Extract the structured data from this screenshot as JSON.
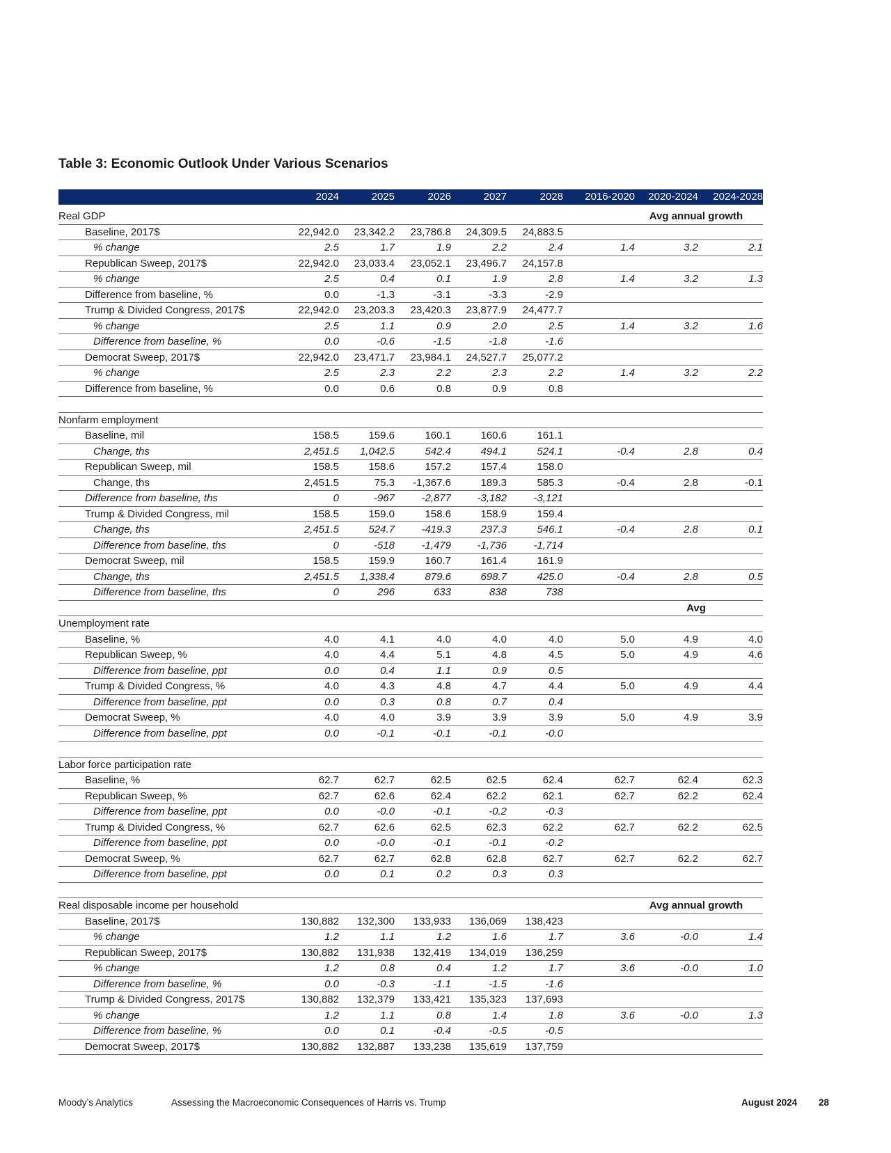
{
  "header": {
    "title": "Table 3: Economic Outlook Under Various Scenarios"
  },
  "table": {
    "columns": [
      "2024",
      "2025",
      "2026",
      "2027",
      "2028",
      "2016-2020",
      "2020-2024",
      "2024-2028"
    ],
    "sections": [
      {
        "label": "Real GDP",
        "note": "Avg annual growth",
        "note_row": "same",
        "rows": [
          {
            "label": "Baseline, 2017$",
            "indent": 1,
            "italic": false,
            "cells": [
              "22,942.0",
              "23,342.2",
              "23,786.8",
              "24,309.5",
              "24,883.5"
            ]
          },
          {
            "label": "% change",
            "indent": 2,
            "italic": true,
            "cells": [
              "2.5",
              "1.7",
              "1.9",
              "2.2",
              "2.4",
              "1.4",
              "3.2",
              "2.1"
            ]
          },
          {
            "label": "Republican Sweep, 2017$",
            "indent": 1,
            "italic": false,
            "cells": [
              "22,942.0",
              "23,033.4",
              "23,052.1",
              "23,496.7",
              "24,157.8"
            ]
          },
          {
            "label": "% change",
            "indent": 2,
            "italic": true,
            "cells": [
              "2.5",
              "0.4",
              "0.1",
              "1.9",
              "2.8",
              "1.4",
              "3.2",
              "1.3"
            ]
          },
          {
            "label": "Difference from baseline, %",
            "indent": 1,
            "italic": false,
            "cells": [
              "0.0",
              "-1.3",
              "-3.1",
              "-3.3",
              "-2.9"
            ]
          },
          {
            "label": "Trump & Divided Congress, 2017$",
            "indent": 1,
            "italic": false,
            "cells": [
              "22,942.0",
              "23,203.3",
              "23,420.3",
              "23,877.9",
              "24,477.7"
            ]
          },
          {
            "label": "% change",
            "indent": 2,
            "italic": true,
            "cells": [
              "2.5",
              "1.1",
              "0.9",
              "2.0",
              "2.5",
              "1.4",
              "3.2",
              "1.6"
            ]
          },
          {
            "label": "Difference from baseline, %",
            "indent": 2,
            "italic": true,
            "cells": [
              "0.0",
              "-0.6",
              "-1.5",
              "-1.8",
              "-1.6"
            ]
          },
          {
            "label": "Democrat Sweep, 2017$",
            "indent": 1,
            "italic": false,
            "cells": [
              "22,942.0",
              "23,471.7",
              "23,984.1",
              "24,527.7",
              "25,077.2"
            ]
          },
          {
            "label": "% change",
            "indent": 2,
            "italic": true,
            "cells": [
              "2.5",
              "2.3",
              "2.2",
              "2.3",
              "2.2",
              "1.4",
              "3.2",
              "2.2"
            ]
          },
          {
            "label": "Difference from baseline, %",
            "indent": 1,
            "italic": false,
            "cells": [
              "0.0",
              "0.6",
              "0.8",
              "0.9",
              "0.8"
            ]
          }
        ]
      },
      {
        "label": "Nonfarm employment",
        "rows": [
          {
            "label": "Baseline, mil",
            "indent": 1,
            "italic": false,
            "cells": [
              "158.5",
              "159.6",
              "160.1",
              "160.6",
              "161.1"
            ]
          },
          {
            "label": "Change, ths",
            "indent": 2,
            "italic": true,
            "cells": [
              "2,451.5",
              "1,042.5",
              "542.4",
              "494.1",
              "524.1",
              "-0.4",
              "2.8",
              "0.4"
            ]
          },
          {
            "label": "Republican Sweep, mil",
            "indent": 1,
            "italic": false,
            "cells": [
              "158.5",
              "158.6",
              "157.2",
              "157.4",
              "158.0"
            ]
          },
          {
            "label": "Change, ths",
            "indent": 2,
            "italic": false,
            "cells": [
              "2,451.5",
              "75.3",
              "-1,367.6",
              "189.3",
              "585.3",
              "-0.4",
              "2.8",
              "-0.1"
            ]
          },
          {
            "label": "Difference from baseline, ths",
            "indent": 1,
            "italic": true,
            "cells": [
              "0",
              "-967",
              "-2,877",
              "-3,182",
              "-3,121"
            ]
          },
          {
            "label": "Trump & Divided Congress, mil",
            "indent": 1,
            "italic": false,
            "cells": [
              "158.5",
              "159.0",
              "158.6",
              "158.9",
              "159.4"
            ]
          },
          {
            "label": "Change, ths",
            "indent": 2,
            "italic": true,
            "cells": [
              "2,451.5",
              "524.7",
              "-419.3",
              "237.3",
              "546.1",
              "-0.4",
              "2.8",
              "0.1"
            ]
          },
          {
            "label": "Difference from baseline, ths",
            "indent": 2,
            "italic": true,
            "cells": [
              "0",
              "-518",
              "-1,479",
              "-1,736",
              "-1,714"
            ]
          },
          {
            "label": "Democrat Sweep, mil",
            "indent": 1,
            "italic": false,
            "cells": [
              "158.5",
              "159.9",
              "160.7",
              "161.4",
              "161.9"
            ]
          },
          {
            "label": "Change, ths",
            "indent": 2,
            "italic": true,
            "cells": [
              "2,451.5",
              "1,338.4",
              "879.6",
              "698.7",
              "425.0",
              "-0.4",
              "2.8",
              "0.5"
            ]
          },
          {
            "label": "Difference from baseline, ths",
            "indent": 2,
            "italic": true,
            "cells": [
              "0",
              "296",
              "633",
              "838",
              "738"
            ]
          }
        ]
      },
      {
        "label": "Unemployment rate",
        "note": "Avg",
        "note_row": "above",
        "rows": [
          {
            "label": "Baseline, %",
            "indent": 1,
            "italic": false,
            "cells": [
              "4.0",
              "4.1",
              "4.0",
              "4.0",
              "4.0",
              "5.0",
              "4.9",
              "4.0"
            ]
          },
          {
            "label": "Republican Sweep, %",
            "indent": 1,
            "italic": false,
            "cells": [
              "4.0",
              "4.4",
              "5.1",
              "4.8",
              "4.5",
              "5.0",
              "4.9",
              "4.6"
            ]
          },
          {
            "label": "Difference from baseline, ppt",
            "indent": 2,
            "italic": true,
            "cells": [
              "0.0",
              "0.4",
              "1.1",
              "0.9",
              "0.5"
            ]
          },
          {
            "label": "Trump & Divided Congress, %",
            "indent": 1,
            "italic": false,
            "cells": [
              "4.0",
              "4.3",
              "4.8",
              "4.7",
              "4.4",
              "5.0",
              "4.9",
              "4.4"
            ]
          },
          {
            "label": "Difference from baseline, ppt",
            "indent": 2,
            "italic": true,
            "cells": [
              "0.0",
              "0.3",
              "0.8",
              "0.7",
              "0.4"
            ]
          },
          {
            "label": "Democrat Sweep, %",
            "indent": 1,
            "italic": false,
            "cells": [
              "4.0",
              "4.0",
              "3.9",
              "3.9",
              "3.9",
              "5.0",
              "4.9",
              "3.9"
            ]
          },
          {
            "label": "Difference from baseline, ppt",
            "indent": 2,
            "italic": true,
            "cells": [
              "0.0",
              "-0.1",
              "-0.1",
              "-0.1",
              "-0.0"
            ]
          }
        ]
      },
      {
        "label": "Labor force participation rate",
        "rows": [
          {
            "label": "Baseline, %",
            "indent": 1,
            "italic": false,
            "cells": [
              "62.7",
              "62.7",
              "62.5",
              "62.5",
              "62.4",
              "62.7",
              "62.4",
              "62.3"
            ]
          },
          {
            "label": "Republican Sweep, %",
            "indent": 1,
            "italic": false,
            "cells": [
              "62.7",
              "62.6",
              "62.4",
              "62.2",
              "62.1",
              "62.7",
              "62.2",
              "62.4"
            ]
          },
          {
            "label": "Difference from baseline, ppt",
            "indent": 2,
            "italic": true,
            "cells": [
              "0.0",
              "-0.0",
              "-0.1",
              "-0.2",
              "-0.3"
            ]
          },
          {
            "label": "Trump & Divided Congress, %",
            "indent": 1,
            "italic": false,
            "cells": [
              "62.7",
              "62.6",
              "62.5",
              "62.3",
              "62.2",
              "62.7",
              "62.2",
              "62.5"
            ]
          },
          {
            "label": "Difference from baseline, ppt",
            "indent": 2,
            "italic": true,
            "cells": [
              "0.0",
              "-0.0",
              "-0.1",
              "-0.1",
              "-0.2"
            ]
          },
          {
            "label": "Democrat Sweep, %",
            "indent": 1,
            "italic": false,
            "cells": [
              "62.7",
              "62.7",
              "62.8",
              "62.8",
              "62.7",
              "62.7",
              "62.2",
              "62.7"
            ]
          },
          {
            "label": "Difference from baseline, ppt",
            "indent": 2,
            "italic": true,
            "cells": [
              "0.0",
              "0.1",
              "0.2",
              "0.3",
              "0.3"
            ]
          }
        ]
      },
      {
        "label": "Real disposable income per household",
        "note": "Avg annual growth",
        "note_row": "same",
        "rows": [
          {
            "label": "Baseline, 2017$",
            "indent": 1,
            "italic": false,
            "cells": [
              "130,882",
              "132,300",
              "133,933",
              "136,069",
              "138,423"
            ]
          },
          {
            "label": "% change",
            "indent": 2,
            "italic": true,
            "cells": [
              "1.2",
              "1.1",
              "1.2",
              "1.6",
              "1.7",
              "3.6",
              "-0.0",
              "1.4"
            ]
          },
          {
            "label": "Republican Sweep, 2017$",
            "indent": 1,
            "italic": false,
            "cells": [
              "130,882",
              "131,938",
              "132,419",
              "134,019",
              "136,259"
            ]
          },
          {
            "label": "% change",
            "indent": 2,
            "italic": true,
            "cells": [
              "1.2",
              "0.8",
              "0.4",
              "1.2",
              "1.7",
              "3.6",
              "-0.0",
              "1.0"
            ]
          },
          {
            "label": "Difference from baseline, %",
            "indent": 2,
            "italic": true,
            "cells": [
              "0.0",
              "-0.3",
              "-1.1",
              "-1.5",
              "-1.6"
            ]
          },
          {
            "label": "Trump & Divided Congress, 2017$",
            "indent": 1,
            "italic": false,
            "cells": [
              "130,882",
              "132,379",
              "133,421",
              "135,323",
              "137,693"
            ]
          },
          {
            "label": "% change",
            "indent": 2,
            "italic": true,
            "cells": [
              "1.2",
              "1.1",
              "0.8",
              "1.4",
              "1.8",
              "3.6",
              "-0.0",
              "1.3"
            ]
          },
          {
            "label": "Difference from baseline, %",
            "indent": 2,
            "italic": true,
            "cells": [
              "0.0",
              "0.1",
              "-0.4",
              "-0.5",
              "-0.5"
            ]
          },
          {
            "label": "Democrat Sweep, 2017$",
            "indent": 1,
            "italic": false,
            "cells": [
              "130,882",
              "132,887",
              "133,238",
              "135,619",
              "137,759"
            ]
          }
        ]
      }
    ]
  },
  "footer": {
    "source": "Moody’s Analytics",
    "report": "Assessing the Macroeconomic Consequences of Harris vs. Trump",
    "date": "August 2024",
    "page": "28"
  }
}
